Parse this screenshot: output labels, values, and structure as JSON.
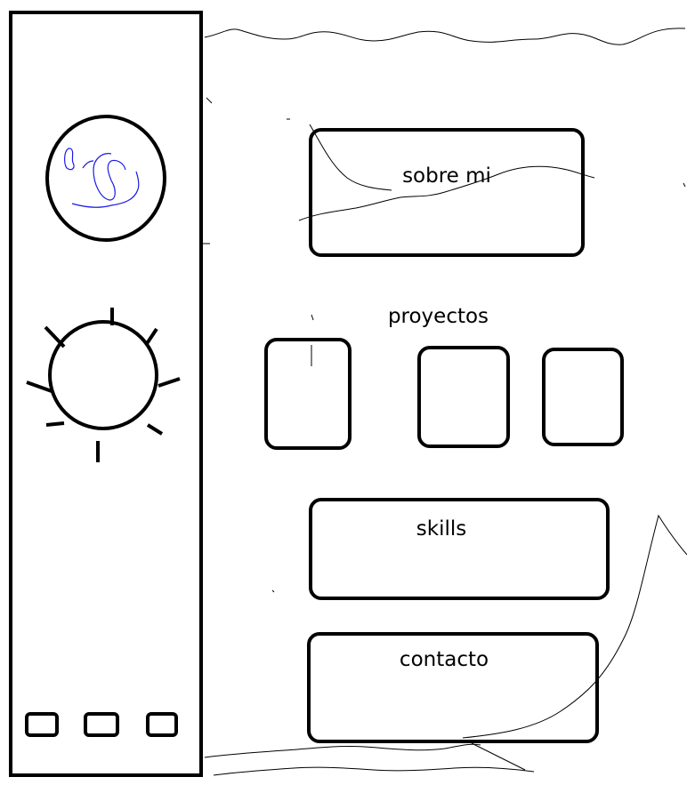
{
  "sidebar": {
    "avatar_icon": "profile-photo",
    "theme_toggle_icon": "sun-icon",
    "social_icons": [
      "social-link",
      "social-link",
      "social-link"
    ]
  },
  "main": {
    "about_label": "sobre mi",
    "projects_heading": "proyectos",
    "skills_label": "skills",
    "contact_label": "contacto"
  },
  "colors": {
    "ink": "#000000",
    "background": "#ffffff"
  }
}
